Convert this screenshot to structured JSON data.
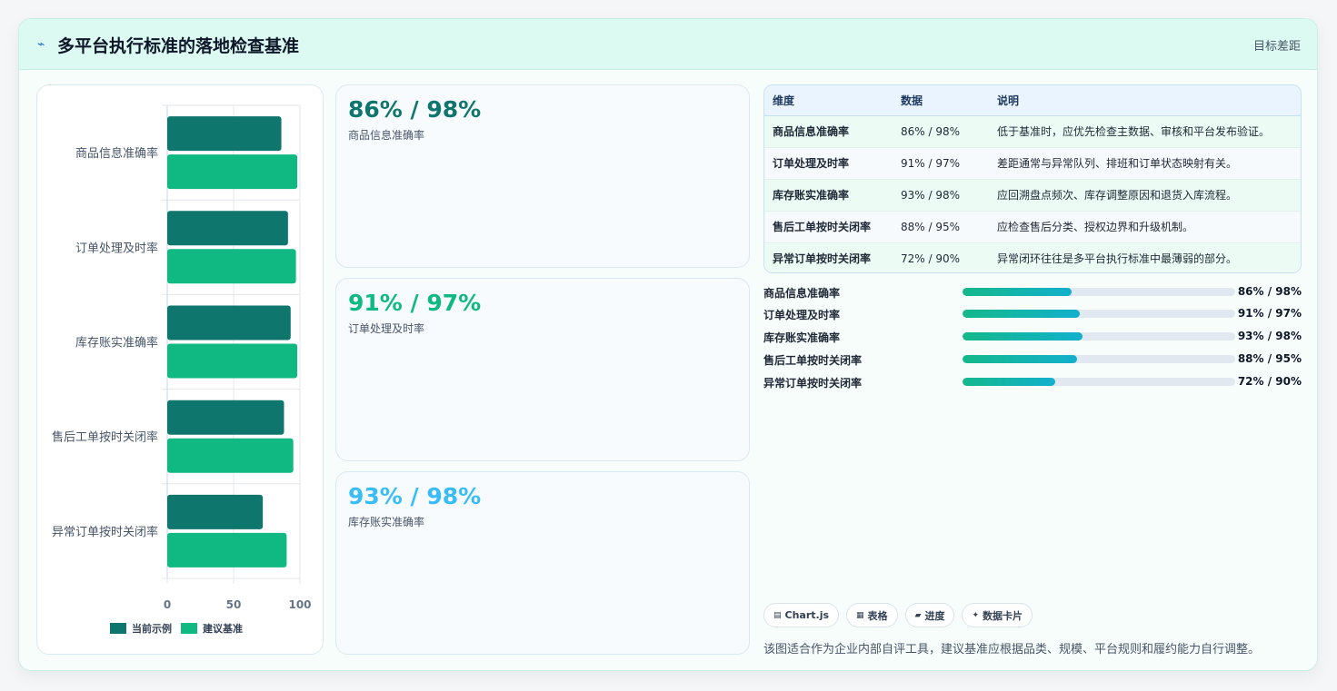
{
  "header": {
    "title": "多平台执行标准的落地检查基准",
    "title_icon": "lightning-icon",
    "right_label": "目标差距"
  },
  "chart_data": {
    "type": "bar",
    "orientation": "horizontal",
    "categories": [
      "商品信息准确率",
      "订单处理及时率",
      "库存账实准确率",
      "售后工单按时关闭率",
      "异常订单按时关闭率"
    ],
    "series": [
      {
        "name": "当前示例",
        "values": [
          86,
          91,
          93,
          88,
          72
        ],
        "color": "#0f766e"
      },
      {
        "name": "建议基准",
        "values": [
          98,
          97,
          98,
          95,
          90
        ],
        "color": "#10b981"
      }
    ],
    "x_ticks": [
      "0",
      "50",
      "100"
    ],
    "xlim": [
      0,
      100
    ],
    "grid": true,
    "legend_position": "bottom"
  },
  "kpis": [
    {
      "value": "86% / 98%",
      "label": "商品信息准确率",
      "color": "#0f766e"
    },
    {
      "value": "91% / 97%",
      "label": "订单处理及时率",
      "color": "#10b981"
    },
    {
      "value": "93% / 98%",
      "label": "库存账实准确率",
      "color": "#38bdf8"
    }
  ],
  "table": {
    "headers": [
      "维度",
      "数据",
      "说明"
    ],
    "rows": [
      [
        "商品信息准确率",
        "86% / 98%",
        "低于基准时，应优先检查主数据、审核和平台发布验证。"
      ],
      [
        "订单处理及时率",
        "91% / 97%",
        "差距通常与异常队列、排班和订单状态映射有关。"
      ],
      [
        "库存账实准确率",
        "93% / 98%",
        "应回溯盘点频次、库存调整原因和退货入库流程。"
      ],
      [
        "售后工单按时关闭率",
        "88% / 95%",
        "应检查售后分类、授权边界和升级机制。"
      ],
      [
        "异常订单按时关闭率",
        "72% / 90%",
        "异常闭环往往是多平台执行标准中最薄弱的部分。"
      ]
    ]
  },
  "progress": [
    {
      "label": "商品信息准确率",
      "value": "86% / 98%",
      "fill": 0.4
    },
    {
      "label": "订单处理及时率",
      "value": "91% / 97%",
      "fill": 0.43
    },
    {
      "label": "库存账实准确率",
      "value": "93% / 98%",
      "fill": 0.44
    },
    {
      "label": "售后工单按时关闭率",
      "value": "88% / 95%",
      "fill": 0.42
    },
    {
      "label": "异常订单按时关闭率",
      "value": "72% / 90%",
      "fill": 0.34
    }
  ],
  "chips": [
    {
      "icon": "chart-icon",
      "glyph": "▤",
      "label": "Chart.js"
    },
    {
      "icon": "table-icon",
      "glyph": "▦",
      "label": "表格"
    },
    {
      "icon": "progress-icon",
      "glyph": "▰",
      "label": "进度"
    },
    {
      "icon": "sparkle-icon",
      "glyph": "✦",
      "label": "数据卡片"
    }
  ],
  "footnote": "该图适合作为企业内部自评工具，建议基准应根据品类、规模、平台规则和履约能力自行调整。"
}
